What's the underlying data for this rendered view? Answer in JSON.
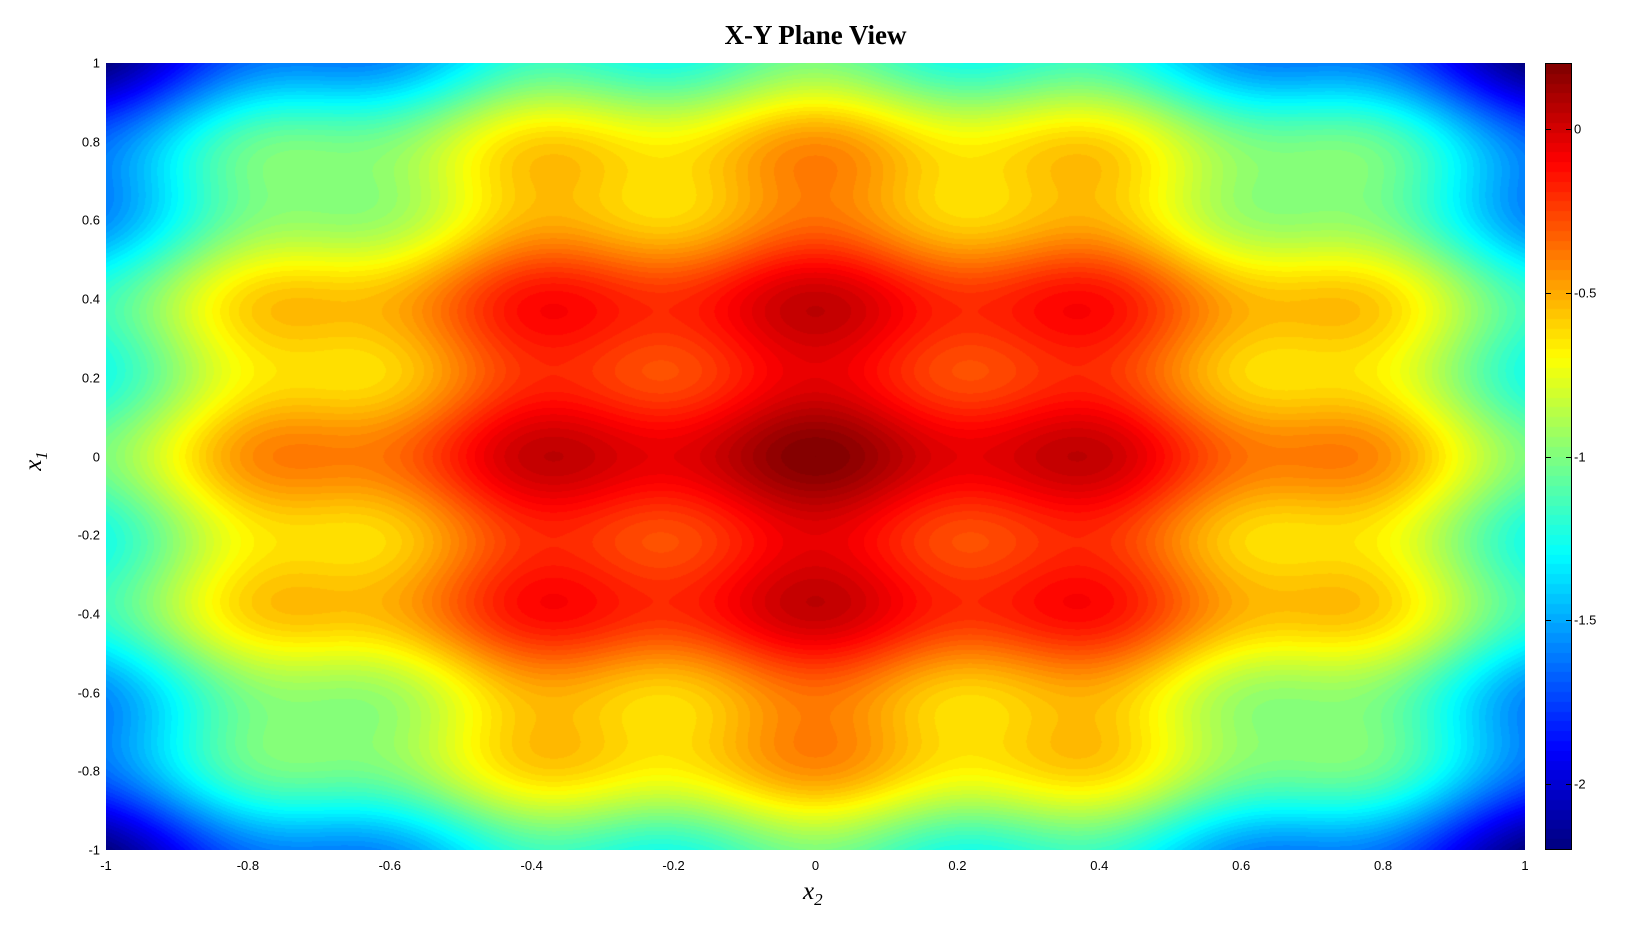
{
  "chart_data": {
    "type": "heatmap",
    "subtype": "filled-contour",
    "title": "X-Y Plane View",
    "xlabel": {
      "base": "x",
      "sub": "2"
    },
    "ylabel": {
      "base": "x",
      "sub": "1"
    },
    "xlim": [
      -1,
      1
    ],
    "ylim": [
      -1,
      1
    ],
    "x_ticks": [
      "-1",
      "-0.8",
      "-0.6",
      "-0.4",
      "-0.2",
      "0",
      "0.2",
      "0.4",
      "0.6",
      "0.8",
      "1"
    ],
    "y_ticks": [
      "-1",
      "-0.8",
      "-0.6",
      "-0.4",
      "-0.2",
      "0",
      "0.2",
      "0.4",
      "0.6",
      "0.8",
      "1"
    ],
    "z_function": "0.1*(cos(5*pi*x1)+cos(5*pi*x2)) - (x1^2 + x2^2)",
    "z_range": [
      -2.2,
      0.2
    ],
    "contour_level_step": 0.03,
    "colormap": "jet",
    "grid": false,
    "colorbar": {
      "position": "right",
      "limits": [
        -2.2,
        0.2
      ],
      "ticks": [
        "-2",
        "-1.5",
        "-1",
        "-0.5",
        "0"
      ]
    }
  }
}
